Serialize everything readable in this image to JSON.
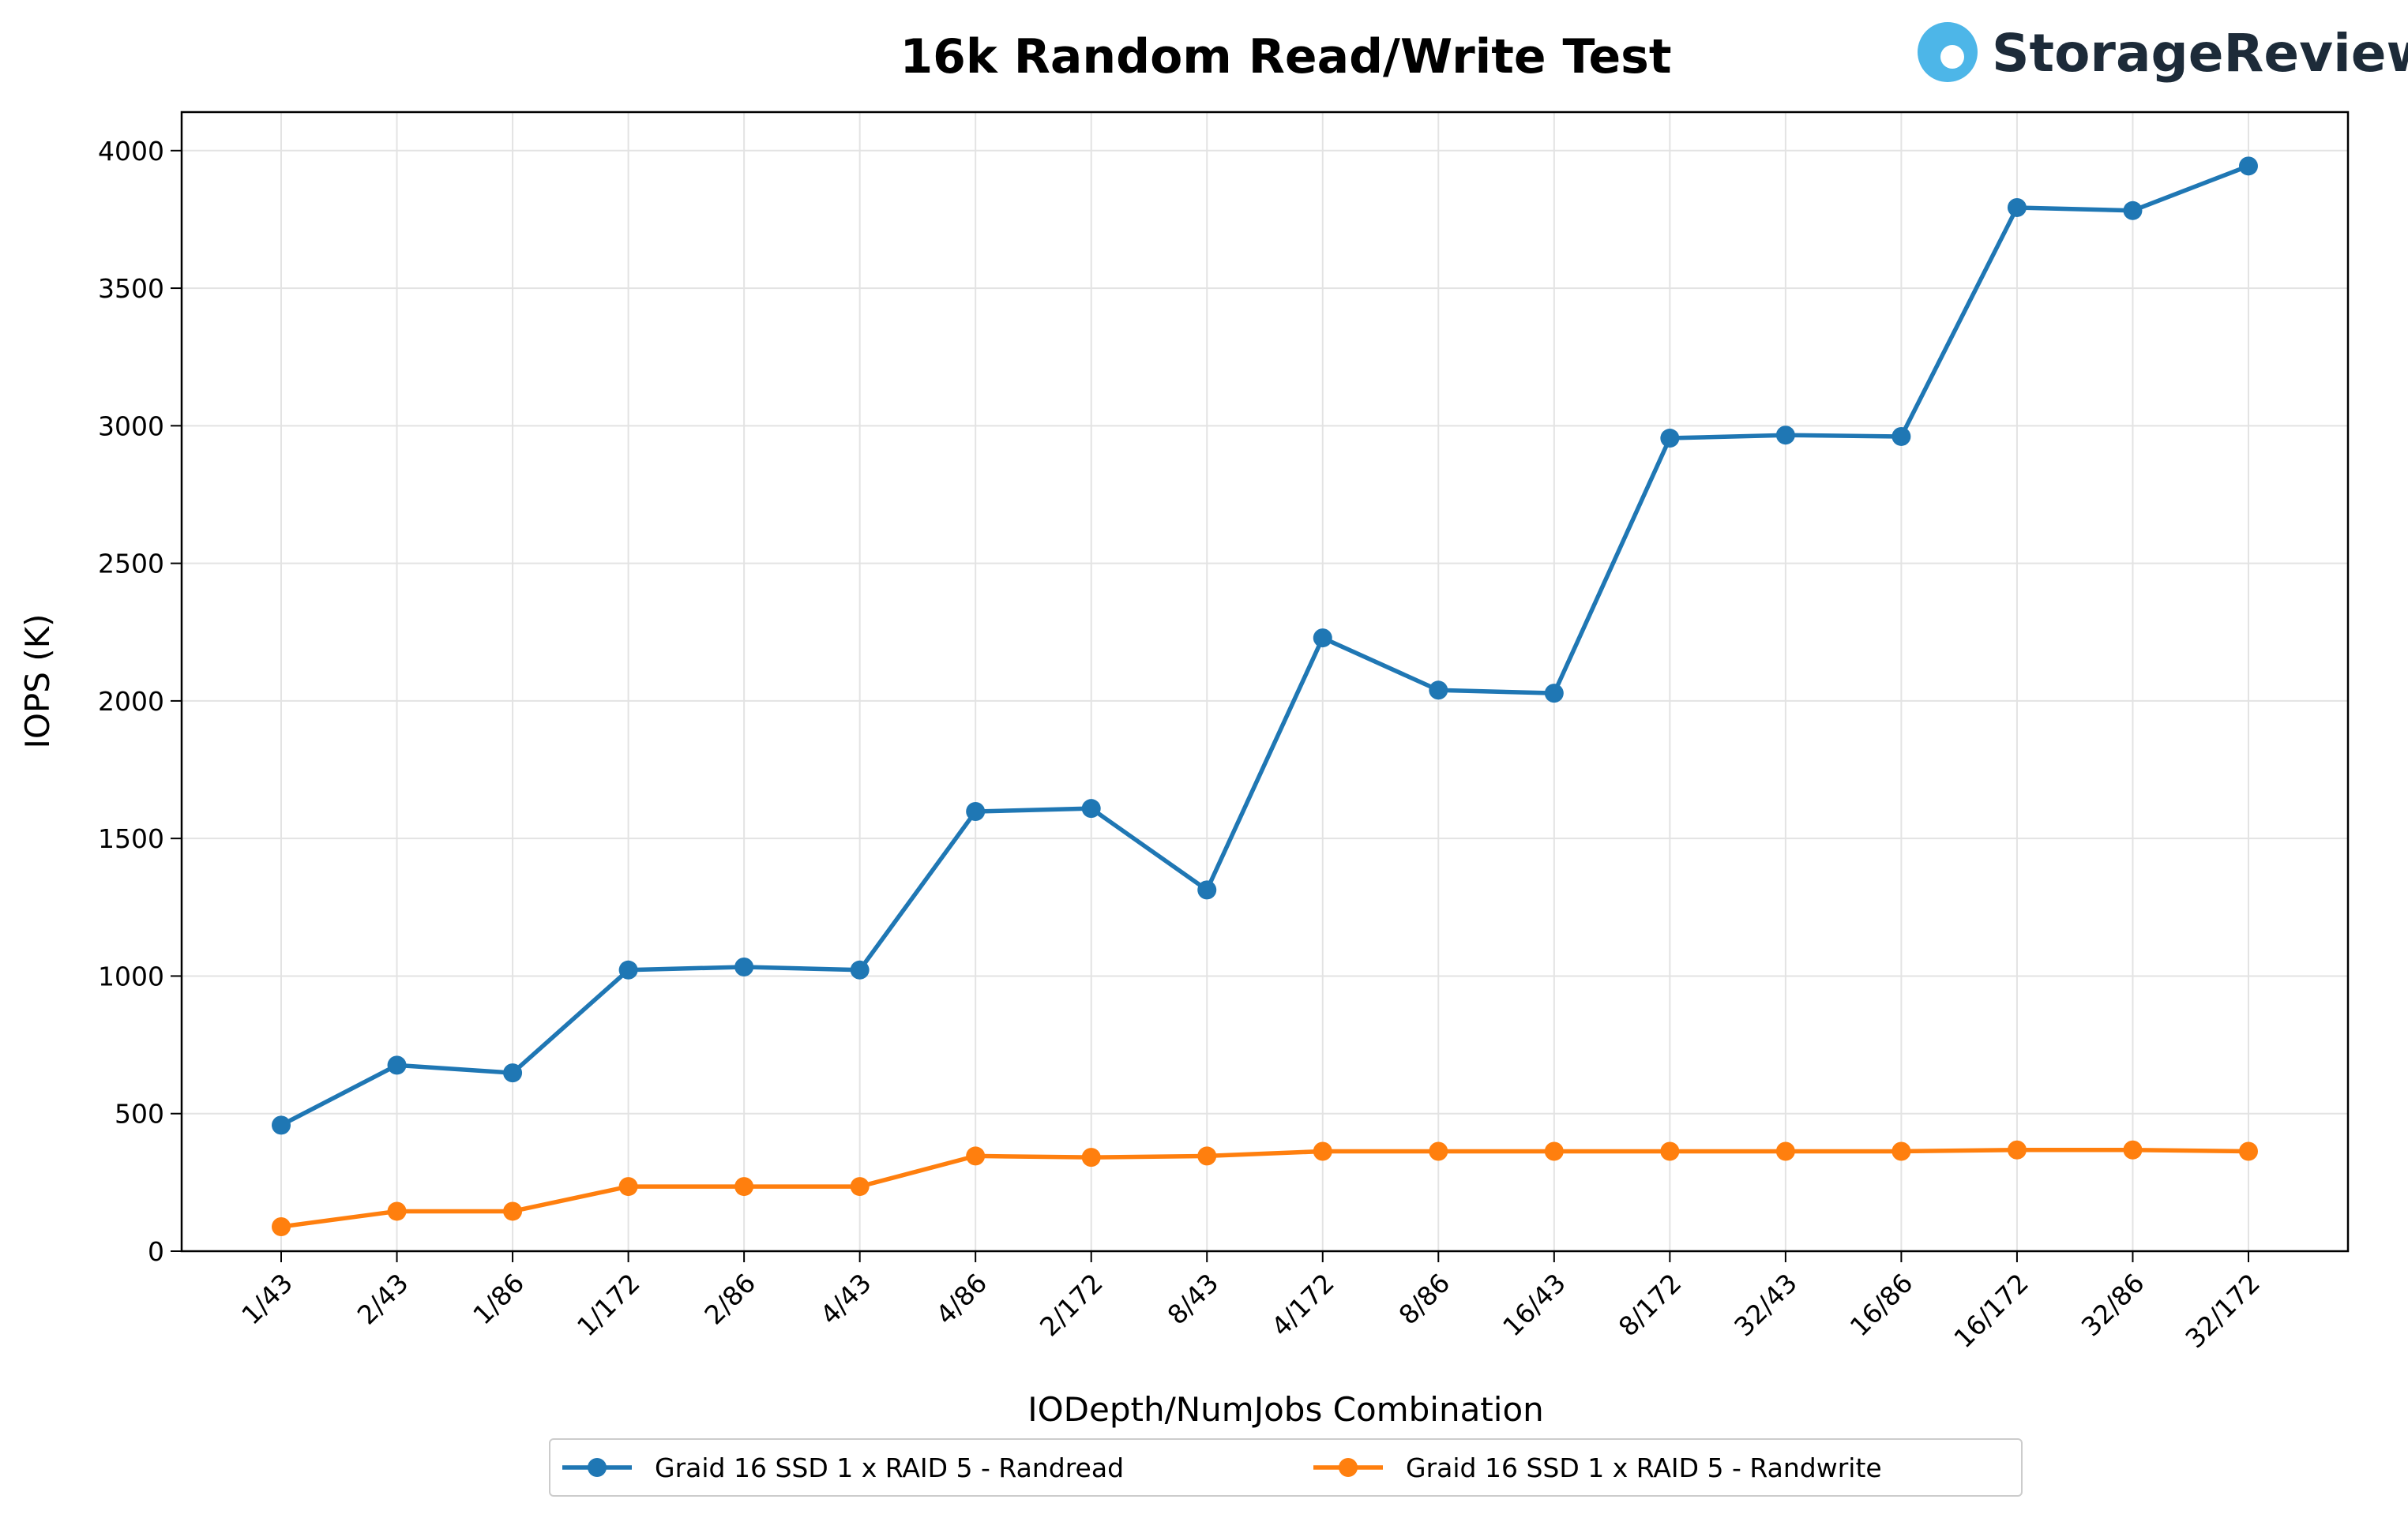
{
  "chart_data": {
    "type": "line",
    "title": "16k Random Read/Write Test",
    "brand": "StorageReview",
    "x_label": "IODepth/NumJobs Combination",
    "y_label": "IOPS (K)",
    "categories": [
      "1/43",
      "2/43",
      "1/86",
      "1/172",
      "2/86",
      "4/43",
      "4/86",
      "2/172",
      "8/43",
      "4/172",
      "8/86",
      "16/43",
      "8/172",
      "32/43",
      "16/86",
      "16/172",
      "32/86",
      "32/172"
    ],
    "series": [
      {
        "name": "Graid 16 SSD 1 x RAID 5 - Randread",
        "color": "#1f77b4",
        "values": [
          458,
          676,
          648,
          1022,
          1033,
          1022,
          1598,
          1609,
          1313,
          2229,
          2039,
          2028,
          2955,
          2966,
          2961,
          3793,
          3782,
          3944
        ]
      },
      {
        "name": "Graid 16 SSD 1 x RAID 5 - Randwrite",
        "color": "#ff7f0e",
        "values": [
          89,
          145,
          145,
          235,
          235,
          235,
          346,
          341,
          346,
          363,
          363,
          363,
          363,
          363,
          363,
          368,
          368,
          363
        ]
      }
    ],
    "ylim": [
      0,
      4140
    ],
    "yticks": [
      0,
      500,
      1000,
      1500,
      2000,
      2500,
      3000,
      3500,
      4000
    ],
    "grid": true,
    "legend": "bottom"
  }
}
